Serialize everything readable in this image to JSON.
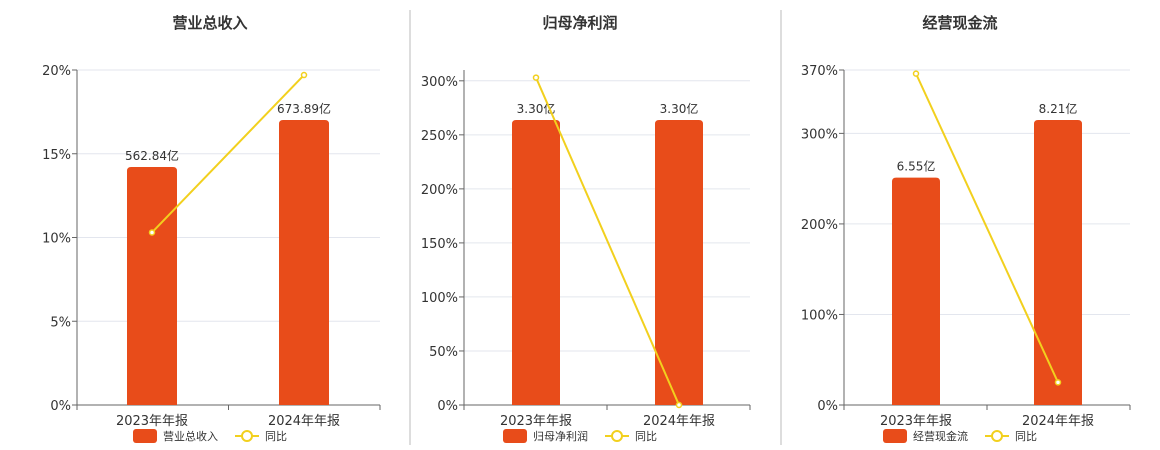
{
  "colors": {
    "bar": "#E84C1A",
    "line": "#F2D01E",
    "grid": "#E3E6EE",
    "axis": "#666666",
    "divider": "#BBBBBB"
  },
  "chart_data": [
    {
      "type": "bar",
      "title": "营业总收入",
      "categories": [
        "2023年年报",
        "2024年年报"
      ],
      "series": [
        {
          "name": "营业总收入",
          "type": "bar",
          "values": [
            562.84,
            673.89
          ],
          "data_labels": [
            "562.84亿",
            "673.89亿"
          ]
        },
        {
          "name": "同比",
          "type": "line",
          "values": [
            10.3,
            19.7
          ]
        }
      ],
      "y_ticks": [
        "0%",
        "5%",
        "10%",
        "15%",
        "20%"
      ],
      "ylim": [
        0,
        20
      ],
      "grid": true,
      "legend_position": "bottom"
    },
    {
      "type": "bar",
      "title": "归母净利润",
      "categories": [
        "2023年年报",
        "2024年年报"
      ],
      "series": [
        {
          "name": "归母净利润",
          "type": "bar",
          "values": [
            3.3,
            3.3
          ],
          "data_labels": [
            "3.30亿",
            "3.30亿"
          ]
        },
        {
          "name": "同比",
          "type": "line",
          "values": [
            303,
            0
          ]
        }
      ],
      "y_ticks": [
        "0%",
        "50%",
        "100%",
        "150%",
        "200%",
        "250%",
        "300%"
      ],
      "ylim": [
        0,
        310
      ],
      "grid": true,
      "legend_position": "bottom"
    },
    {
      "type": "bar",
      "title": "经营现金流",
      "categories": [
        "2023年年报",
        "2024年年报"
      ],
      "series": [
        {
          "name": "经营现金流",
          "type": "bar",
          "values": [
            6.55,
            8.21
          ],
          "data_labels": [
            "6.55亿",
            "8.21亿"
          ]
        },
        {
          "name": "同比",
          "type": "line",
          "values": [
            366,
            25
          ]
        }
      ],
      "y_ticks": [
        "0%",
        "100%",
        "200%",
        "300%",
        "370%"
      ],
      "ylim": [
        0,
        370
      ],
      "grid": true,
      "legend_position": "bottom"
    }
  ]
}
